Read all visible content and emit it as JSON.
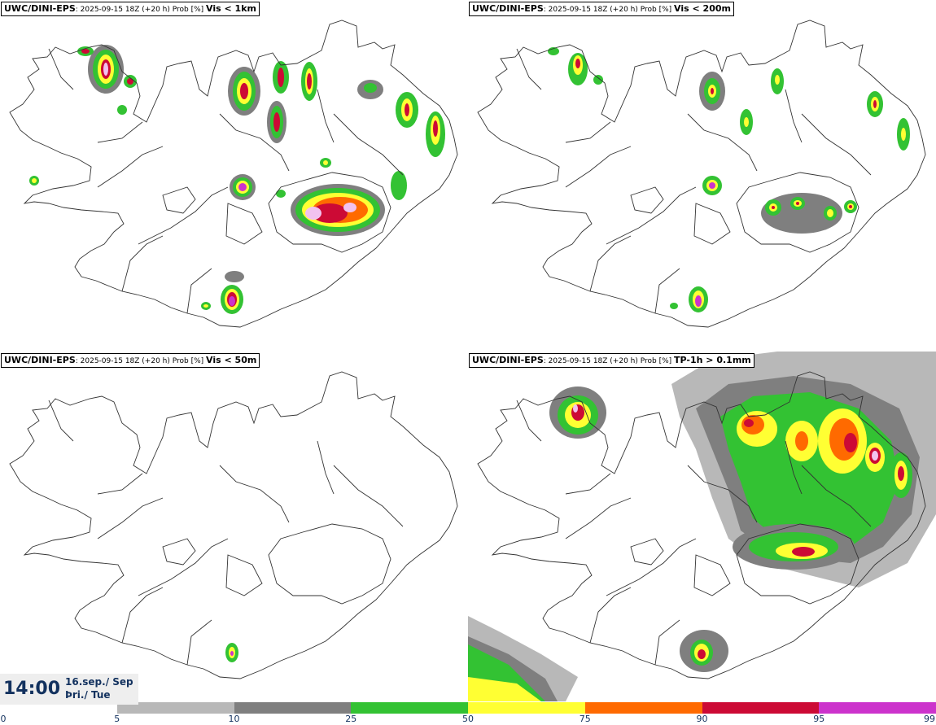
{
  "panels": [
    {
      "model": "UWC/DINI-EPS",
      "run": "2025-09-15 18Z (+20 h) Prob [%]",
      "variable": "Vis < 1km"
    },
    {
      "model": "UWC/DINI-EPS",
      "run": "2025-09-15 18Z (+20 h) Prob [%]",
      "variable": "Vis < 200m"
    },
    {
      "model": "UWC/DINI-EPS",
      "run": "2025-09-15 18Z (+20 h) Prob [%]",
      "variable": "Vis < 50m"
    },
    {
      "model": "UWC/DINI-EPS",
      "run": "2025-09-15 18Z (+20 h) Prob [%]",
      "variable": "TP-1h > 0.1mm"
    }
  ],
  "valid_time": {
    "time": "14:00",
    "date_line1": "16.sep./ Sep",
    "date_line2": "Þri./ Tue"
  },
  "colorbar": {
    "ticks": [
      "0",
      "5",
      "10",
      "25",
      "50",
      "75",
      "90",
      "95",
      "99"
    ],
    "colors": [
      "#ffffff",
      "#b8b8b8",
      "#7f7f7f",
      "#33c233",
      "#ffff33",
      "#ff6a00",
      "#cc0a35",
      "#cc33cc",
      "#f2c2ef"
    ]
  },
  "map_colors": {
    "gray_light": "#b8b8b8",
    "gray_dark": "#7f7f7f",
    "green": "#33c233",
    "yellow": "#ffff33",
    "orange": "#ff6a00",
    "red": "#cc0a35",
    "magenta": "#cc33cc",
    "pink": "#f2c2ef"
  }
}
